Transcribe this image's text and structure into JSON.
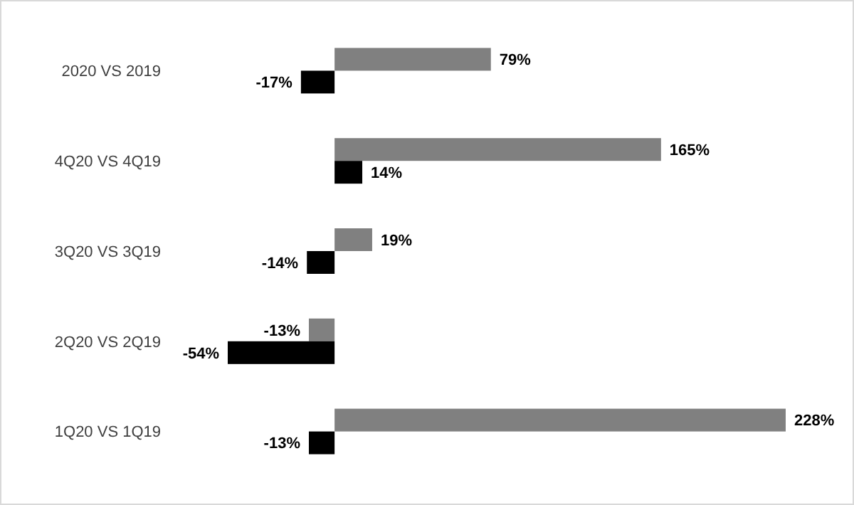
{
  "chart_data": {
    "type": "bar",
    "orientation": "horizontal",
    "categories": [
      "2020 VS 2019",
      "4Q20 VS 4Q19",
      "3Q20 VS 3Q19",
      "2Q20 VS 2Q19",
      "1Q20 VS 1Q19"
    ],
    "tick_labels": "y",
    "series": [
      {
        "color": "#808080",
        "values": [
          79,
          165,
          19,
          -13,
          228
        ],
        "value_labels": [
          "79%",
          "165%",
          "19%",
          "-13%",
          "228%"
        ]
      },
      {
        "color": "#000000",
        "values": [
          -17,
          14,
          -14,
          -54,
          -13
        ],
        "value_labels": [
          "-17%",
          "14%",
          "-14%",
          "-54%",
          "-13%"
        ]
      }
    ]
  }
}
